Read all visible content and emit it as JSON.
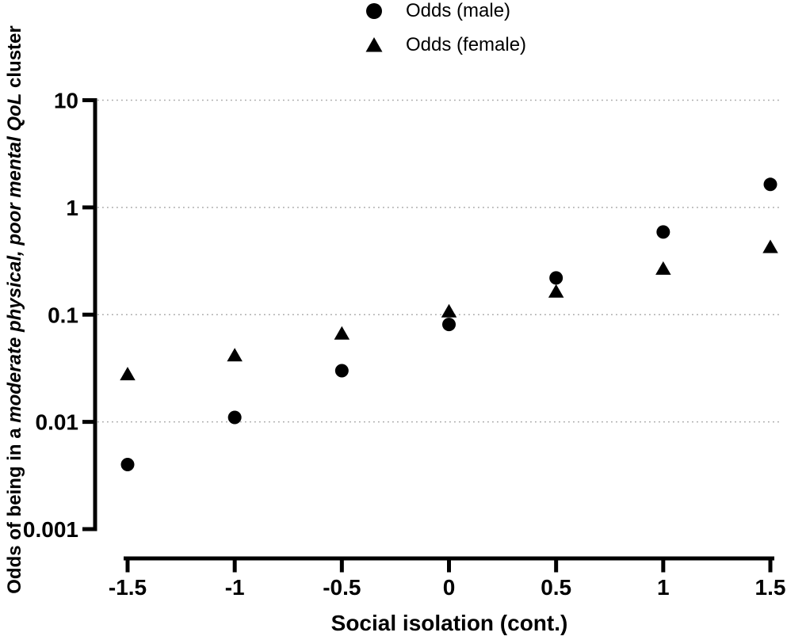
{
  "chart_data": {
    "type": "scatter",
    "title": "",
    "x_label": "Social isolation (cont.)",
    "y_label": "Odds of being in a moderate physical, poor mental QoL cluster",
    "y_label_parts": {
      "prefix": "Odds of being in a ",
      "italic": "moderate physical, poor mental QoL",
      "suffix": " cluster"
    },
    "x_scale": "linear",
    "y_scale": "log10",
    "xlim": [
      -1.5,
      1.5
    ],
    "ylim": [
      0.001,
      10
    ],
    "x_ticks": [
      -1.5,
      -1,
      -0.5,
      0,
      0.5,
      1,
      1.5
    ],
    "x_tick_labels": [
      "-1.5",
      "-1",
      "-0.5",
      "0",
      "0.5",
      "1",
      "1.5"
    ],
    "y_ticks": [
      10,
      1,
      0.1,
      0.01,
      0.001
    ],
    "y_tick_labels": [
      "10",
      "1",
      "0.1",
      "0.01",
      "0.001"
    ],
    "gridlines_at": [
      10,
      1,
      0.1,
      0.01
    ],
    "grid_on": true,
    "legend_position": "top-center",
    "grid_color": "#a8a8a8",
    "marker_color": "#000000",
    "axis_color": "#000000",
    "x": [
      -1.5,
      -1,
      -0.5,
      0,
      0.5,
      1,
      1.5
    ],
    "series": [
      {
        "name": "Odds (male)",
        "marker": "circle",
        "values": [
          0.004,
          0.011,
          0.03,
          0.081,
          0.22,
          0.59,
          1.64
        ]
      },
      {
        "name": "Odds (female)",
        "marker": "triangle",
        "values": [
          0.028,
          0.042,
          0.067,
          0.108,
          0.165,
          0.27,
          0.43
        ]
      }
    ]
  }
}
